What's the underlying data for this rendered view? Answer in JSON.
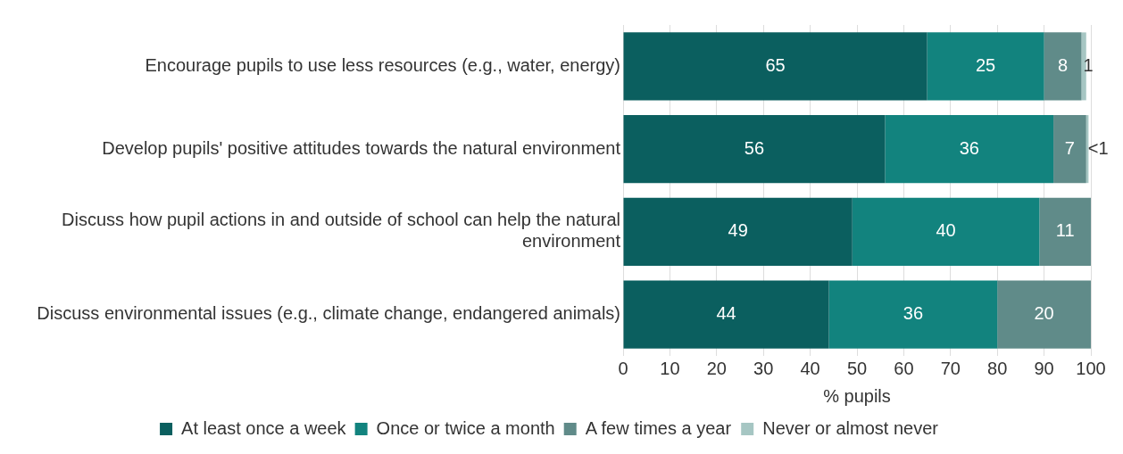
{
  "chart_data": {
    "type": "bar",
    "orientation": "horizontal",
    "stacked": true,
    "xlabel": "% pupils",
    "categories": [
      "Encourage pupils to use less resources (e.g., water, energy)",
      "Develop pupils' positive attitudes towards the natural environment",
      "Discuss how pupil actions in and outside of school can help the natural environment",
      "Discuss environmental issues (e.g., climate change, endangered animals)"
    ],
    "series": [
      {
        "name": "At least once a week",
        "color": "#0b5f5f",
        "values": [
          65,
          56,
          49,
          44
        ],
        "value_labels": [
          "65",
          "56",
          "49",
          "44"
        ]
      },
      {
        "name": "Once or twice a month",
        "color": "#12837e",
        "values": [
          25,
          36,
          40,
          36
        ],
        "value_labels": [
          "25",
          "36",
          "40",
          "36"
        ]
      },
      {
        "name": "A few times a year",
        "color": "#608b89",
        "values": [
          8,
          7,
          11,
          20
        ],
        "value_labels": [
          "8",
          "7",
          "11",
          "20"
        ]
      },
      {
        "name": "Never or almost never",
        "color": "#a6c6c3",
        "values": [
          1,
          0.5,
          null,
          null
        ],
        "value_labels": [
          "1",
          "<1",
          null,
          null
        ]
      }
    ],
    "xlim": [
      0,
      100
    ],
    "xticks": [
      0,
      10,
      20,
      30,
      40,
      50,
      60,
      70,
      80,
      90,
      100
    ],
    "grid": "x",
    "legend": "bottom"
  }
}
